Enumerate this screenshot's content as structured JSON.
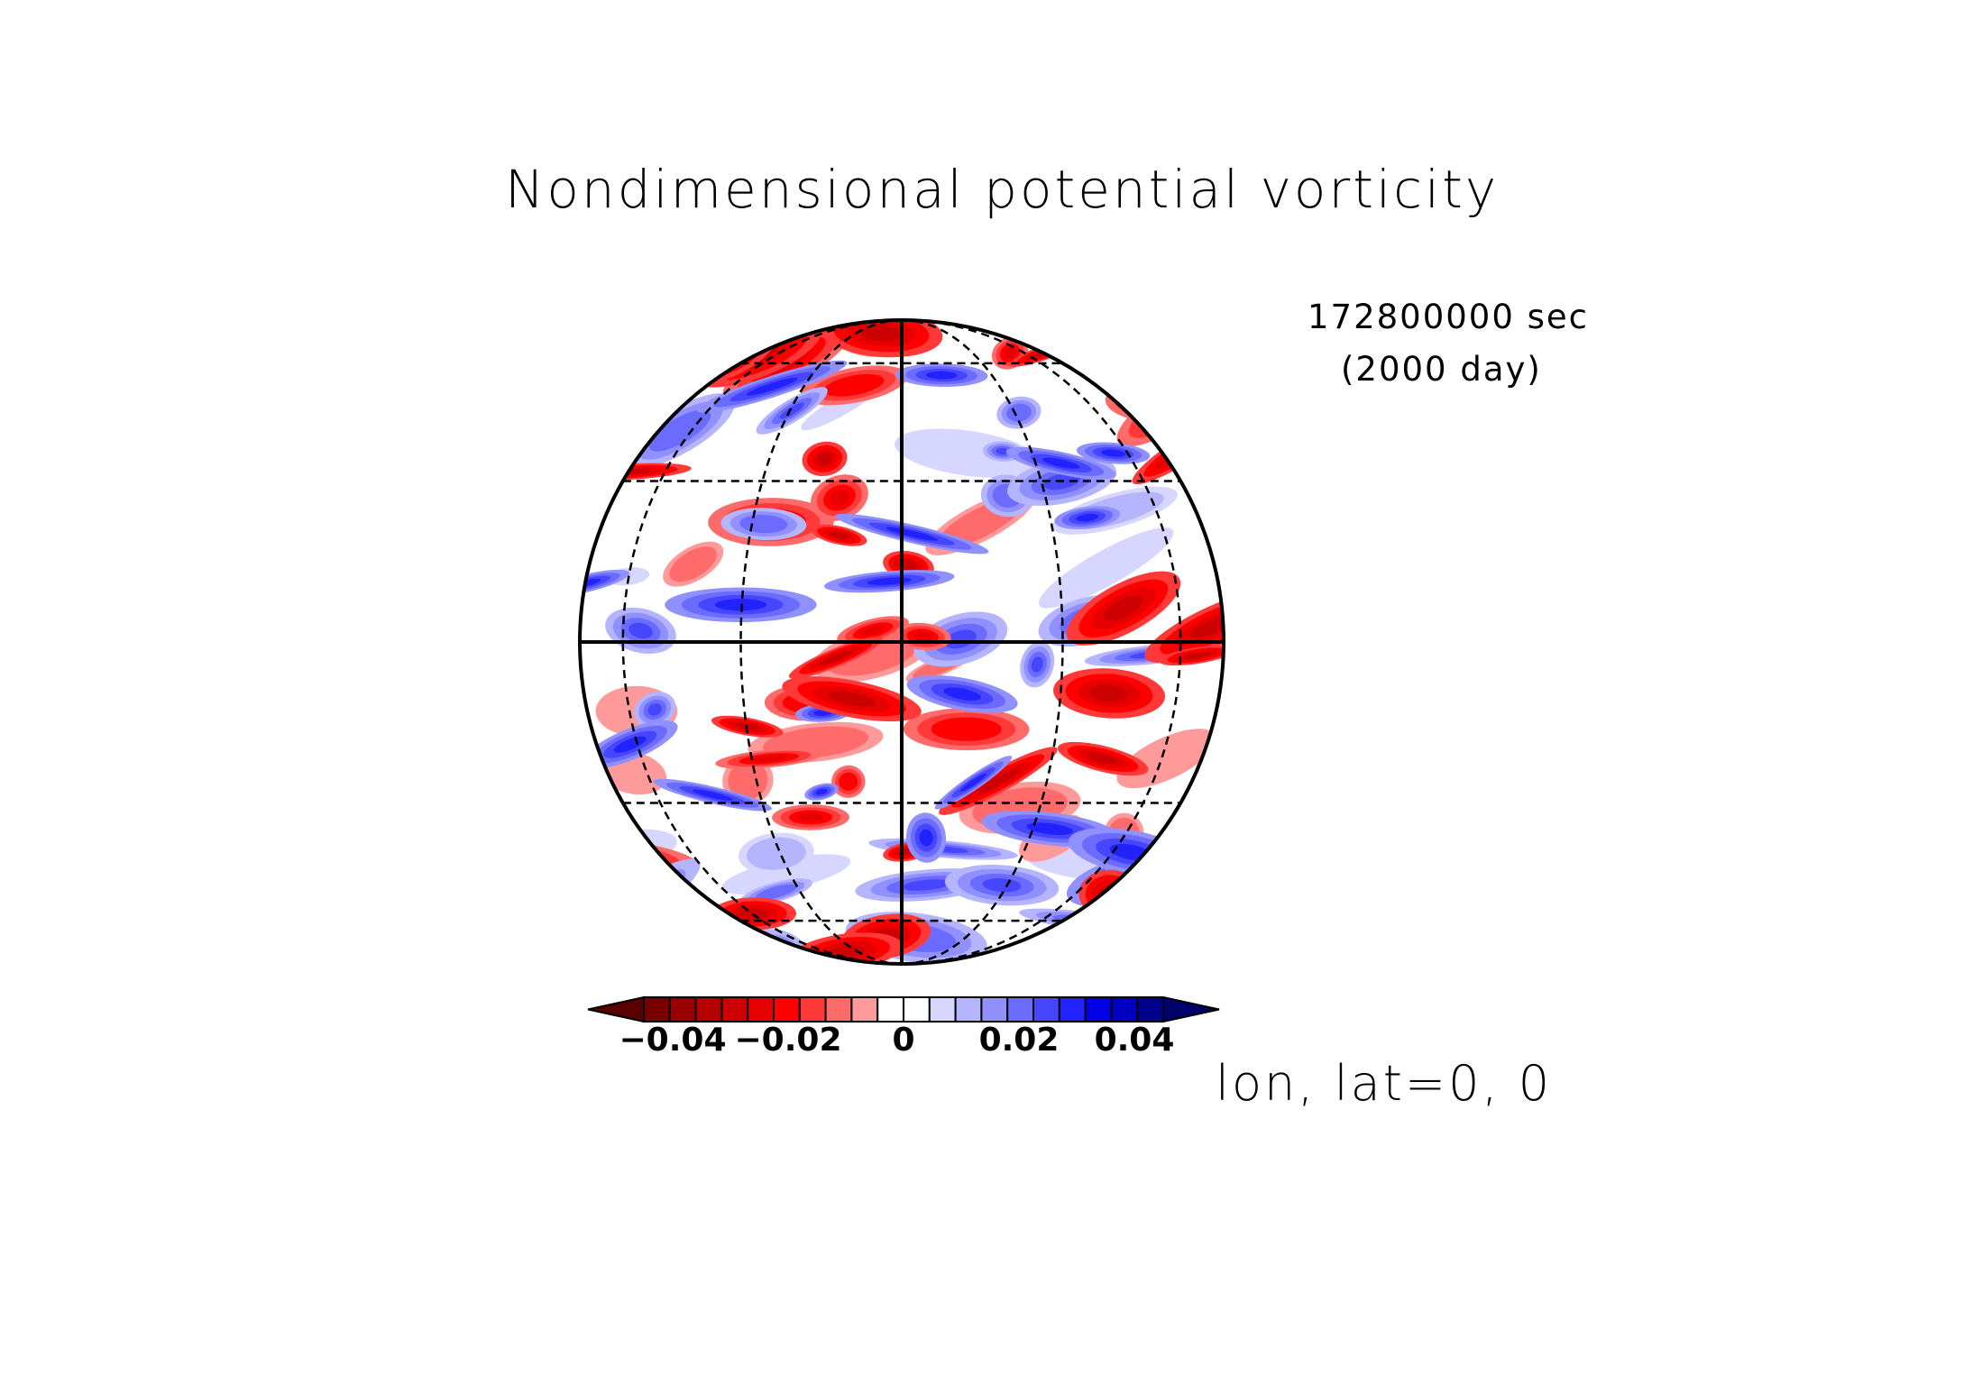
{
  "title": "Nondimensional potential vorticity",
  "time": {
    "seconds": "172800000 sec",
    "days": "(2000 day)"
  },
  "projection_label": "lon, lat=0, 0",
  "colorbar": {
    "tick_labels": [
      "−0.04",
      "−0.02",
      "0",
      "0.02",
      "0.04"
    ],
    "tick_values": [
      -0.04,
      -0.02,
      0,
      0.02,
      0.04
    ],
    "min": -0.045,
    "max": 0.045,
    "step": 0.005,
    "extend": "both",
    "colors": [
      "#7a0000",
      "#9a0000",
      "#b30000",
      "#cc0000",
      "#e60000",
      "#ff0000",
      "#ff3838",
      "#ff6a6a",
      "#ff9a9a",
      "#ffffff",
      "#ffffff",
      "#d6d6ff",
      "#b4b4ff",
      "#9090ff",
      "#6b6bff",
      "#4646ff",
      "#2222ff",
      "#0000e6",
      "#0000c0",
      "#00008c"
    ]
  },
  "map": {
    "projection": "orthographic",
    "center": {
      "lon": 0,
      "lat": 0
    },
    "graticule_lats": [
      -60,
      -30,
      30,
      60
    ],
    "graticule_lons": [
      -60,
      -30,
      30,
      60
    ],
    "field": "potential vorticity (nondimensional)",
    "colors": {
      "negative": "#e00000",
      "positive": "#0000d0",
      "line": "#000000"
    }
  }
}
